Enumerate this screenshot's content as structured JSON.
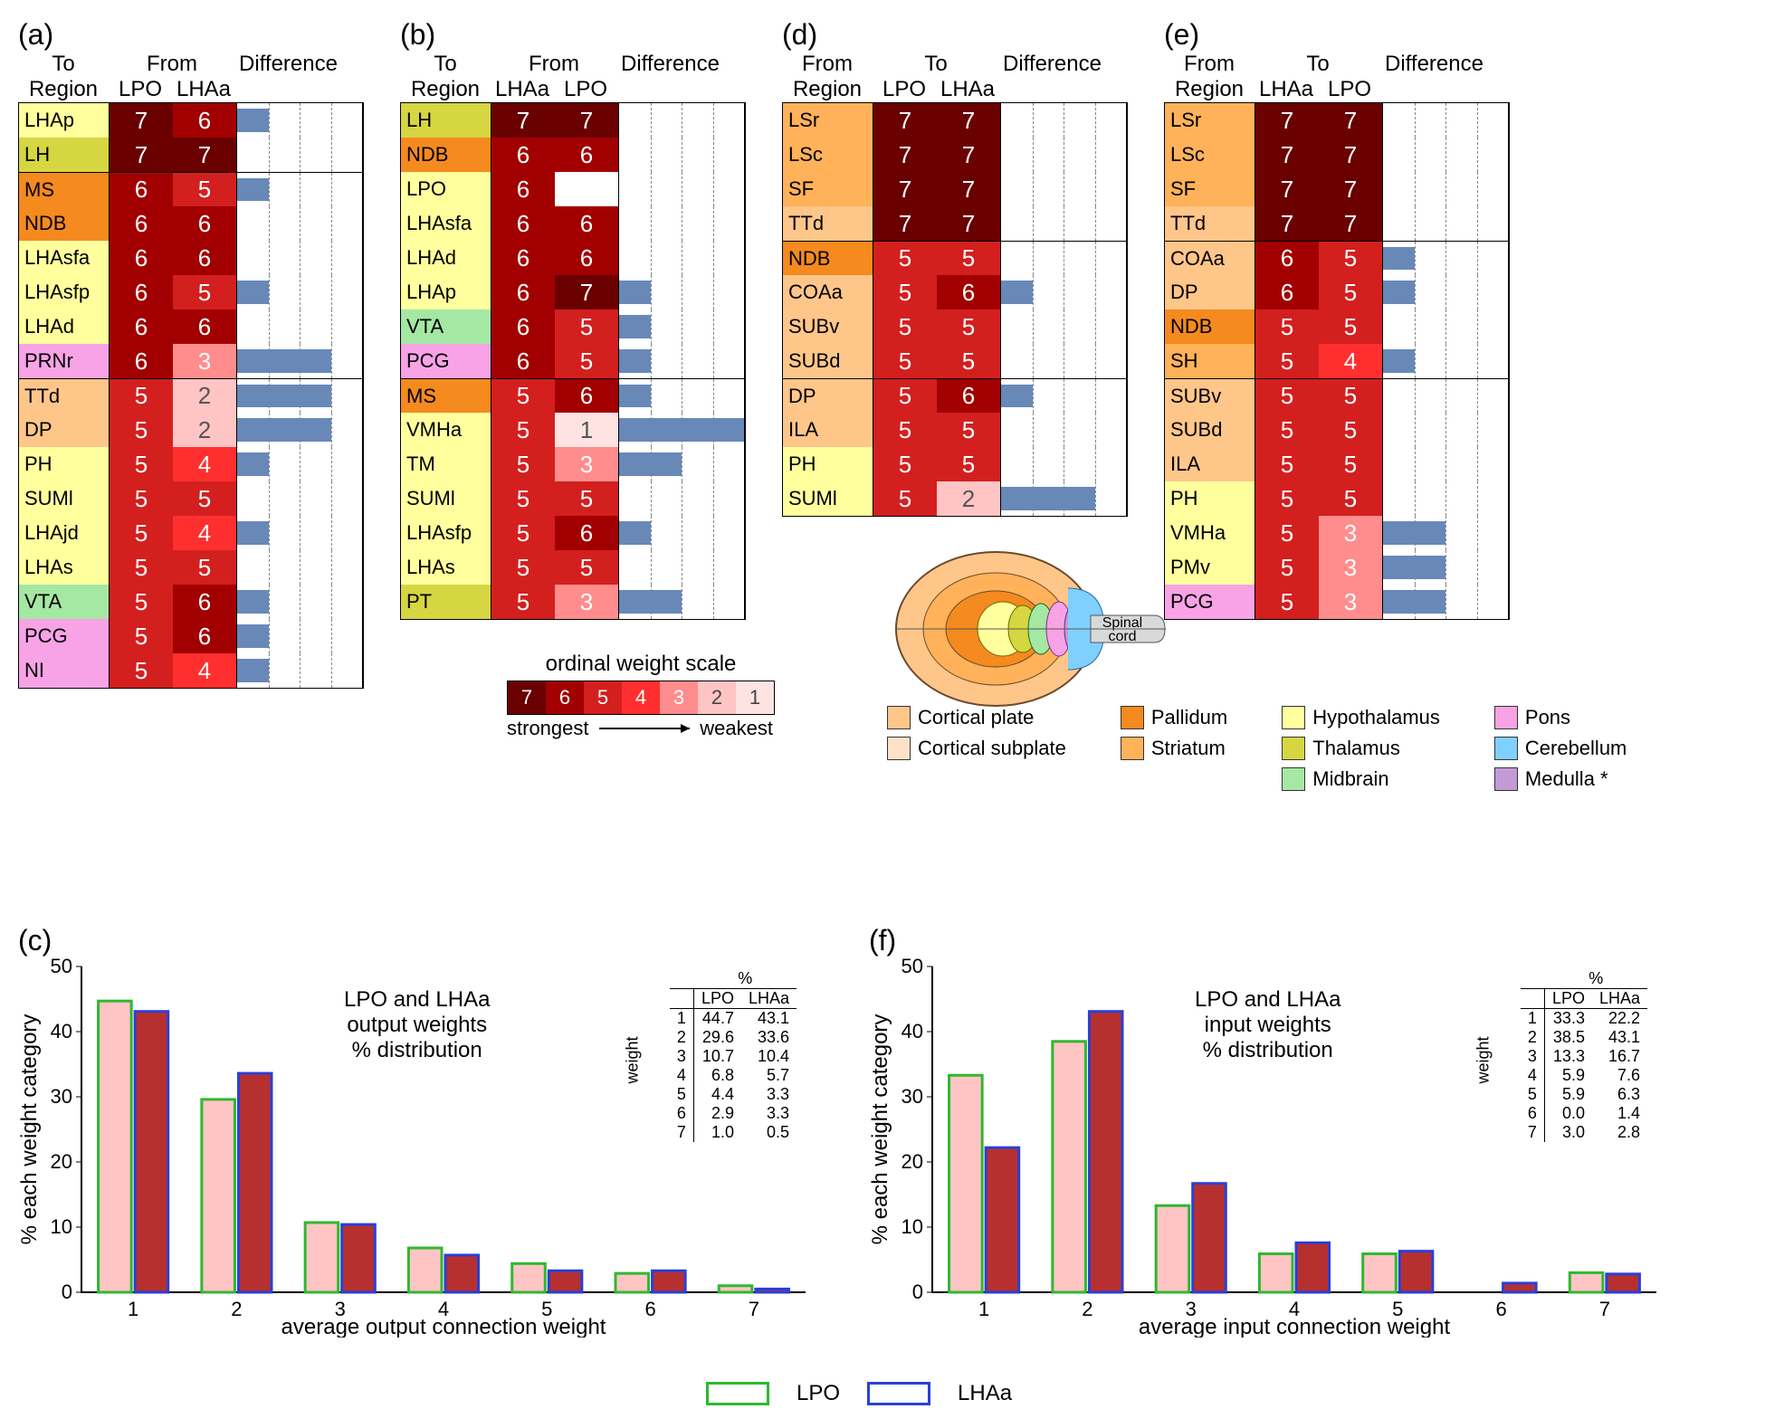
{
  "ordinal_scale": {
    "title": "ordinal weight scale",
    "values": [
      7,
      6,
      5,
      4,
      3,
      2,
      1
    ],
    "colors": {
      "7": "#6a0000",
      "6": "#a20000",
      "5": "#d41f1f",
      "4": "#ff2f2f",
      "3": "#ff8d8d",
      "2": "#ffc5c5",
      "1": "#ffe3e3"
    },
    "strongest_label": "strongest",
    "weakest_label": "weakest"
  },
  "region_colors": {
    "Cortical plate": "#ffc68a",
    "Cortical subplate": "#ffe1c9",
    "Pallidum": "#f58a1f",
    "Striatum": "#ffb259",
    "Hypothalamus": "#ffff9e",
    "Thalamus": "#d6d642",
    "Midbrain": "#a4e8a4",
    "Pons": "#f7a3e6",
    "Cerebellum": "#7fd0ff",
    "Medulla *": "#c49ad6"
  },
  "region_legend_order": [
    "Cortical plate",
    "Cortical subplate",
    "Pallidum",
    "Striatum",
    "Hypothalamus",
    "Thalamus",
    "Midbrain",
    "Pons",
    "Cerebellum",
    "Medulla *"
  ],
  "diff_bar_color": "#6888b8",
  "panels": {
    "a": {
      "label": "(a)",
      "header": {
        "to": "To\nRegion",
        "from": "From",
        "col1": "LPO",
        "col2": "LHAa",
        "diff": "Difference"
      },
      "diff_max": 4,
      "diff_ticks": [
        1,
        2,
        3
      ],
      "rows": [
        {
          "r": "LHAp",
          "rc": "Hypothalamus",
          "v1": 7,
          "v2": 6,
          "d": 1,
          "sep": false
        },
        {
          "r": "LH",
          "rc": "Thalamus",
          "v1": 7,
          "v2": 7,
          "d": 0,
          "sep": false
        },
        {
          "r": "MS",
          "rc": "Pallidum",
          "v1": 6,
          "v2": 5,
          "d": 1,
          "sep": true
        },
        {
          "r": "NDB",
          "rc": "Pallidum",
          "v1": 6,
          "v2": 6,
          "d": 0,
          "sep": false
        },
        {
          "r": "LHAsfa",
          "rc": "Hypothalamus",
          "v1": 6,
          "v2": 6,
          "d": 0,
          "sep": false
        },
        {
          "r": "LHAsfp",
          "rc": "Hypothalamus",
          "v1": 6,
          "v2": 5,
          "d": 1,
          "sep": false
        },
        {
          "r": "LHAd",
          "rc": "Hypothalamus",
          "v1": 6,
          "v2": 6,
          "d": 0,
          "sep": false
        },
        {
          "r": "PRNr",
          "rc": "Pons",
          "v1": 6,
          "v2": 3,
          "d": 3,
          "sep": false
        },
        {
          "r": "TTd",
          "rc": "Cortical plate",
          "v1": 5,
          "v2": 2,
          "d": 3,
          "sep": true
        },
        {
          "r": "DP",
          "rc": "Cortical plate",
          "v1": 5,
          "v2": 2,
          "d": 3,
          "sep": false
        },
        {
          "r": "PH",
          "rc": "Hypothalamus",
          "v1": 5,
          "v2": 4,
          "d": 1,
          "sep": false
        },
        {
          "r": "SUMl",
          "rc": "Hypothalamus",
          "v1": 5,
          "v2": 5,
          "d": 0,
          "sep": false
        },
        {
          "r": "LHAjd",
          "rc": "Hypothalamus",
          "v1": 5,
          "v2": 4,
          "d": 1,
          "sep": false
        },
        {
          "r": "LHAs",
          "rc": "Hypothalamus",
          "v1": 5,
          "v2": 5,
          "d": 0,
          "sep": false
        },
        {
          "r": "VTA",
          "rc": "Midbrain",
          "v1": 5,
          "v2": 6,
          "d": 1,
          "sep": false
        },
        {
          "r": "PCG",
          "rc": "Pons",
          "v1": 5,
          "v2": 6,
          "d": 1,
          "sep": false
        },
        {
          "r": "NI",
          "rc": "Pons",
          "v1": 5,
          "v2": 4,
          "d": 1,
          "sep": false
        }
      ]
    },
    "b": {
      "label": "(b)",
      "header": {
        "to": "To\nRegion",
        "from": "From",
        "col1": "LHAa",
        "col2": "LPO",
        "diff": "Difference"
      },
      "diff_max": 4,
      "diff_ticks": [
        1,
        2,
        3
      ],
      "rows": [
        {
          "r": "LH",
          "rc": "Thalamus",
          "v1": 7,
          "v2": 7,
          "d": 0,
          "sep": false
        },
        {
          "r": "NDB",
          "rc": "Pallidum",
          "v1": 6,
          "v2": 6,
          "d": 0,
          "sep": false
        },
        {
          "r": "LPO",
          "rc": "Hypothalamus",
          "v1": 6,
          "v2": null,
          "d": 0,
          "sep": false
        },
        {
          "r": "LHAsfa",
          "rc": "Hypothalamus",
          "v1": 6,
          "v2": 6,
          "d": 0,
          "sep": false
        },
        {
          "r": "LHAd",
          "rc": "Hypothalamus",
          "v1": 6,
          "v2": 6,
          "d": 0,
          "sep": false
        },
        {
          "r": "LHAp",
          "rc": "Hypothalamus",
          "v1": 6,
          "v2": 7,
          "d": 1,
          "sep": false
        },
        {
          "r": "VTA",
          "rc": "Midbrain",
          "v1": 6,
          "v2": 5,
          "d": 1,
          "sep": false
        },
        {
          "r": "PCG",
          "rc": "Pons",
          "v1": 6,
          "v2": 5,
          "d": 1,
          "sep": false
        },
        {
          "r": "MS",
          "rc": "Pallidum",
          "v1": 5,
          "v2": 6,
          "d": 1,
          "sep": true
        },
        {
          "r": "VMHa",
          "rc": "Hypothalamus",
          "v1": 5,
          "v2": 1,
          "d": 4,
          "sep": false
        },
        {
          "r": "TM",
          "rc": "Hypothalamus",
          "v1": 5,
          "v2": 3,
          "d": 2,
          "sep": false
        },
        {
          "r": "SUMl",
          "rc": "Hypothalamus",
          "v1": 5,
          "v2": 5,
          "d": 0,
          "sep": false
        },
        {
          "r": "LHAsfp",
          "rc": "Hypothalamus",
          "v1": 5,
          "v2": 6,
          "d": 1,
          "sep": false
        },
        {
          "r": "LHAs",
          "rc": "Hypothalamus",
          "v1": 5,
          "v2": 5,
          "d": 0,
          "sep": false
        },
        {
          "r": "PT",
          "rc": "Thalamus",
          "v1": 5,
          "v2": 3,
          "d": 2,
          "sep": false
        }
      ]
    },
    "d": {
      "label": "(d)",
      "header": {
        "to": "From\nRegion",
        "from": "To",
        "col1": "LPO",
        "col2": "LHAa",
        "diff": "Difference"
      },
      "diff_max": 4,
      "diff_ticks": [
        1,
        2,
        3
      ],
      "rows": [
        {
          "r": "LSr",
          "rc": "Striatum",
          "v1": 7,
          "v2": 7,
          "d": 0,
          "sep": false
        },
        {
          "r": "LSc",
          "rc": "Striatum",
          "v1": 7,
          "v2": 7,
          "d": 0,
          "sep": false
        },
        {
          "r": "SF",
          "rc": "Striatum",
          "v1": 7,
          "v2": 7,
          "d": 0,
          "sep": false
        },
        {
          "r": "TTd",
          "rc": "Cortical plate",
          "v1": 7,
          "v2": 7,
          "d": 0,
          "sep": false
        },
        {
          "r": "NDB",
          "rc": "Pallidum",
          "v1": 5,
          "v2": 5,
          "d": 0,
          "sep": true
        },
        {
          "r": "COAa",
          "rc": "Cortical plate",
          "v1": 5,
          "v2": 6,
          "d": 1,
          "sep": false
        },
        {
          "r": "SUBv",
          "rc": "Cortical plate",
          "v1": 5,
          "v2": 5,
          "d": 0,
          "sep": false
        },
        {
          "r": "SUBd",
          "rc": "Cortical plate",
          "v1": 5,
          "v2": 5,
          "d": 0,
          "sep": false
        },
        {
          "r": "DP",
          "rc": "Cortical plate",
          "v1": 5,
          "v2": 6,
          "d": 1,
          "sep": true
        },
        {
          "r": "ILA",
          "rc": "Cortical plate",
          "v1": 5,
          "v2": 5,
          "d": 0,
          "sep": false
        },
        {
          "r": "PH",
          "rc": "Hypothalamus",
          "v1": 5,
          "v2": 5,
          "d": 0,
          "sep": false
        },
        {
          "r": "SUMl",
          "rc": "Hypothalamus",
          "v1": 5,
          "v2": 2,
          "d": 3,
          "sep": false
        }
      ]
    },
    "e": {
      "label": "(e)",
      "header": {
        "to": "From\nRegion",
        "from": "To",
        "col1": "LHAa",
        "col2": "LPO",
        "diff": "Difference"
      },
      "diff_max": 4,
      "diff_ticks": [
        1,
        2,
        3
      ],
      "rows": [
        {
          "r": "LSr",
          "rc": "Striatum",
          "v1": 7,
          "v2": 7,
          "d": 0,
          "sep": false
        },
        {
          "r": "LSc",
          "rc": "Striatum",
          "v1": 7,
          "v2": 7,
          "d": 0,
          "sep": false
        },
        {
          "r": "SF",
          "rc": "Striatum",
          "v1": 7,
          "v2": 7,
          "d": 0,
          "sep": false
        },
        {
          "r": "TTd",
          "rc": "Cortical plate",
          "v1": 7,
          "v2": 7,
          "d": 0,
          "sep": false
        },
        {
          "r": "COAa",
          "rc": "Cortical plate",
          "v1": 6,
          "v2": 5,
          "d": 1,
          "sep": true
        },
        {
          "r": "DP",
          "rc": "Cortical plate",
          "v1": 6,
          "v2": 5,
          "d": 1,
          "sep": false
        },
        {
          "r": "NDB",
          "rc": "Pallidum",
          "v1": 5,
          "v2": 5,
          "d": 0,
          "sep": false
        },
        {
          "r": "SH",
          "rc": "Striatum",
          "v1": 5,
          "v2": 4,
          "d": 1,
          "sep": false
        },
        {
          "r": "SUBv",
          "rc": "Cortical plate",
          "v1": 5,
          "v2": 5,
          "d": 0,
          "sep": true
        },
        {
          "r": "SUBd",
          "rc": "Cortical plate",
          "v1": 5,
          "v2": 5,
          "d": 0,
          "sep": false
        },
        {
          "r": "ILA",
          "rc": "Cortical plate",
          "v1": 5,
          "v2": 5,
          "d": 0,
          "sep": false
        },
        {
          "r": "PH",
          "rc": "Hypothalamus",
          "v1": 5,
          "v2": 5,
          "d": 0,
          "sep": false
        },
        {
          "r": "VMHa",
          "rc": "Hypothalamus",
          "v1": 5,
          "v2": 3,
          "d": 2,
          "sep": false
        },
        {
          "r": "PMv",
          "rc": "Hypothalamus",
          "v1": 5,
          "v2": 3,
          "d": 2,
          "sep": false
        },
        {
          "r": "PCG",
          "rc": "Pons",
          "v1": 5,
          "v2": 3,
          "d": 2,
          "sep": false
        }
      ]
    }
  },
  "charts": {
    "c": {
      "label": "(c)",
      "title": "LPO and LHAa\noutput weights\n% distribution",
      "y_label": "% each weight category",
      "x_label": "average output connection weight",
      "y_max": 50,
      "y_ticks": [
        0,
        10,
        20,
        30,
        40,
        50
      ],
      "x_categories": [
        1,
        2,
        3,
        4,
        5,
        6,
        7
      ],
      "series": [
        {
          "name": "LPO",
          "outline": "#2fb82f",
          "fill": "#ffc5c5",
          "values": [
            44.7,
            29.6,
            10.7,
            6.8,
            4.4,
            2.9,
            1.0
          ]
        },
        {
          "name": "LHAa",
          "outline": "#2a3fd6",
          "fill": "#b73030",
          "values": [
            43.1,
            33.6,
            10.4,
            5.7,
            3.3,
            3.3,
            0.5
          ]
        }
      ],
      "table": {
        "pct": "%",
        "cols": [
          "LPO",
          "LHAa"
        ],
        "side": "weight",
        "rows": [
          [
            1,
            44.7,
            43.1
          ],
          [
            2,
            29.6,
            33.6
          ],
          [
            3,
            10.7,
            10.4
          ],
          [
            4,
            6.8,
            5.7
          ],
          [
            5,
            4.4,
            3.3
          ],
          [
            6,
            2.9,
            3.3
          ],
          [
            7,
            1.0,
            0.5
          ]
        ]
      }
    },
    "f": {
      "label": "(f)",
      "title": "LPO and LHAa\ninput weights\n% distribution",
      "y_label": "% each weight category",
      "x_label": "average input connection weight",
      "y_max": 50,
      "y_ticks": [
        0,
        10,
        20,
        30,
        40,
        50
      ],
      "x_categories": [
        1,
        2,
        3,
        4,
        5,
        6,
        7
      ],
      "series": [
        {
          "name": "LPO",
          "outline": "#2fb82f",
          "fill": "#ffc5c5",
          "values": [
            33.3,
            38.5,
            13.3,
            5.9,
            5.9,
            0.0,
            3.0
          ]
        },
        {
          "name": "LHAa",
          "outline": "#2a3fd6",
          "fill": "#b73030",
          "values": [
            22.2,
            43.1,
            16.7,
            7.6,
            6.3,
            1.4,
            2.8
          ]
        }
      ],
      "table": {
        "pct": "%",
        "cols": [
          "LPO",
          "LHAa"
        ],
        "side": "weight",
        "rows": [
          [
            1,
            33.3,
            22.2
          ],
          [
            2,
            38.5,
            43.1
          ],
          [
            3,
            13.3,
            16.7
          ],
          [
            4,
            5.9,
            7.6
          ],
          [
            5,
            5.9,
            6.3
          ],
          [
            6,
            0.0,
            1.4
          ],
          [
            7,
            3.0,
            2.8
          ]
        ]
      }
    }
  },
  "brain_label": "Spinal\ncord",
  "series_legend": [
    "LPO",
    "LHAa"
  ],
  "series_legend_colors": [
    "#2fb82f",
    "#2a3fd6"
  ]
}
